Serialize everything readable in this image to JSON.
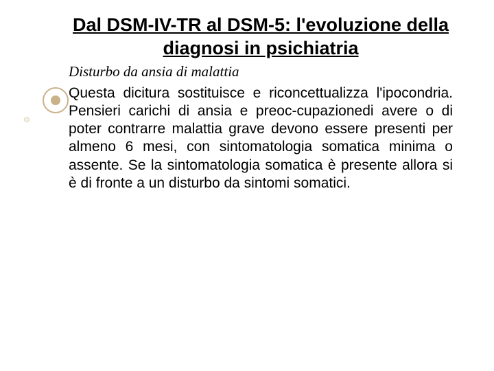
{
  "title": "Dal DSM-IV-TR al DSM-5: l'evoluzione della diagnosi in psichiatria",
  "subtitle": "Disturbo da ansia di malattia",
  "body": "Questa dicitura sostituisce e riconcettualizza l'ipocondria. Pensieri carichi di ansia e preoc-cupazionedi avere o di poter contrarre malattia grave devono essere presenti per almeno 6 mesi, con sintomatologia somatica minima o assente. Se la sintomatologia somatica è presente allora si è di fronte a un disturbo da sintomi somatici.",
  "colors": {
    "background": "#ffffff",
    "text": "#000000",
    "accent_ring": "#c9b28a",
    "accent_fill": "#c9b28a",
    "accent_light": "#f5f0e6"
  },
  "typography": {
    "title_fontsize": 27,
    "title_weight": "bold",
    "subtitle_fontsize": 21,
    "subtitle_style": "italic",
    "body_fontsize": 21
  }
}
